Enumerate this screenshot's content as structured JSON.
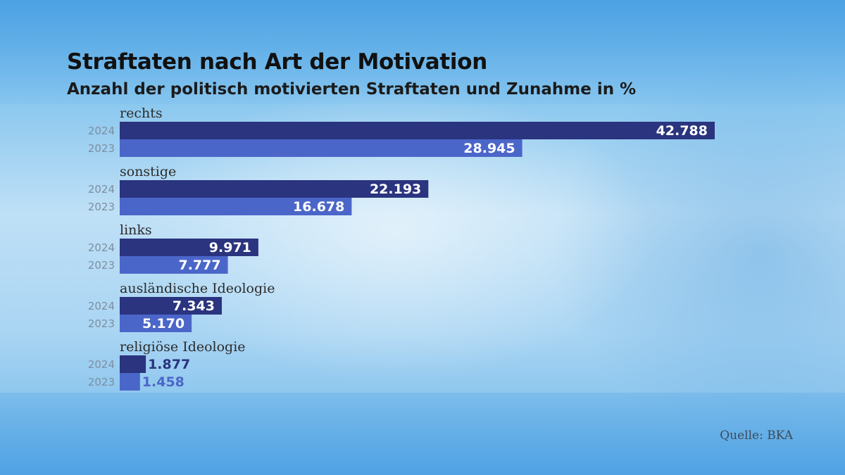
{
  "colors": {
    "bar_2024": "#2a347f",
    "bar_2023": "#4b66c9",
    "value_inside": "#ffffff"
  },
  "source": "Quelle: BKA",
  "chart_data": {
    "type": "bar",
    "orientation": "horizontal",
    "title": "Straftaten nach Art der Motivation",
    "subtitle": "Anzahl der politisch motivierten Straftaten und Zunahme in %",
    "categories": [
      "rechts",
      "sonstige",
      "links",
      "ausländische Ideologie",
      "religiöse Ideologie"
    ],
    "series": [
      {
        "name": "2024",
        "values": [
          42788,
          22193,
          9971,
          7343,
          1877
        ],
        "labels": [
          "42.788",
          "22.193",
          "9.971",
          "7.343",
          "1.877"
        ]
      },
      {
        "name": "2023",
        "values": [
          28945,
          16678,
          7777,
          5170,
          1458
        ],
        "labels": [
          "28.945",
          "16.678",
          "7.777",
          "5.170",
          "1.458"
        ]
      }
    ],
    "xlim": [
      0,
      42788
    ],
    "grid": false,
    "legend": "none"
  }
}
